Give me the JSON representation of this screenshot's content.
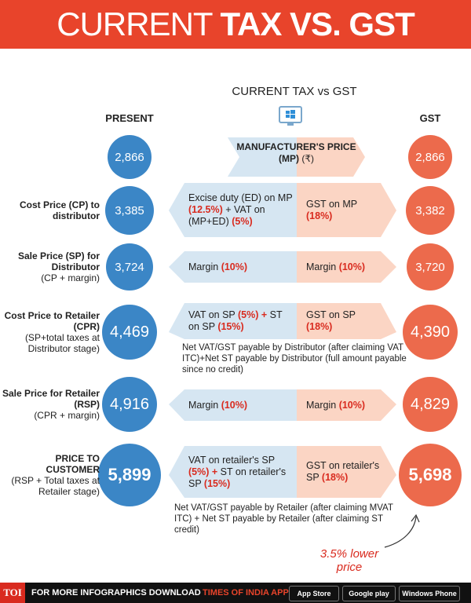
{
  "header": {
    "title_light": "CURRENT",
    "title_bold": "TAX VS. GST"
  },
  "subtitle": "CURRENT TAX vs GST",
  "col_present": "PRESENT",
  "col_gst": "GST",
  "start": {
    "present": "2,866",
    "gst": "2,866",
    "center_bold": "MANUFACTURER'S PRICE (MP)",
    "center_normal": "(₹)"
  },
  "rows": [
    {
      "label_bold": "Cost Price (CP) to distributor",
      "present": "3,385",
      "gst": "3,382",
      "present_text": [
        "Excise duty (ED) on MP ",
        "(12.5%)",
        " + VAT on (MP+ED) ",
        "(5%)"
      ],
      "gst_text": [
        "GST on MP ",
        "(18%)"
      ]
    },
    {
      "label_bold": "Sale Price (SP) for Distributor",
      "label_normal": "(CP + margin)",
      "present": "3,724",
      "gst": "3,720",
      "present_text": [
        "Margin ",
        "(10%)"
      ],
      "gst_text": [
        "Margin ",
        "(10%)"
      ]
    },
    {
      "label_bold": "Cost Price to Retailer (CPR)",
      "label_normal": "(SP+total taxes at Distributor stage)",
      "present": "4,469",
      "gst": "4,390",
      "present_text": [
        "VAT on SP ",
        "(5%) +",
        " ST on SP ",
        "(15%)"
      ],
      "gst_text": [
        "GST on SP ",
        "(18%)"
      ],
      "note": "Net VAT/GST payable by Distributor (after claiming VAT ITC)+Net ST payable by Distributor (full amount payable since no credit)"
    },
    {
      "label_bold": "Sale Price for Retailer (RSP)",
      "label_normal": "(CPR + margin)",
      "present": "4,916",
      "gst": "4,829",
      "present_text": [
        "Margin ",
        "(10%)"
      ],
      "gst_text": [
        "Margin ",
        "(10%)"
      ]
    },
    {
      "label_bold": "PRICE TO CUSTOMER",
      "label_normal": "(RSP + Total taxes at Retailer stage)",
      "present": "5,899",
      "gst": "5,698",
      "present_text": [
        "VAT on retailer's SP ",
        "(5%) +",
        " ST on retailer's SP ",
        "(15%)"
      ],
      "gst_text": [
        "GST on retailer's SP ",
        "(18%)"
      ],
      "note": "Net VAT/GST payable by Retailer (after claiming MVAT ITC) + Net ST payable by Retailer (after claiming ST credit)"
    }
  ],
  "annotation": "3.5% lower price",
  "footer": {
    "logo": "TOI",
    "text": "FOR MORE INFOGRAPHICS DOWNLOAD",
    "app": "TIMES OF INDIA APP",
    "badges": [
      "App Store",
      "Google play",
      "Windows Phone"
    ]
  }
}
